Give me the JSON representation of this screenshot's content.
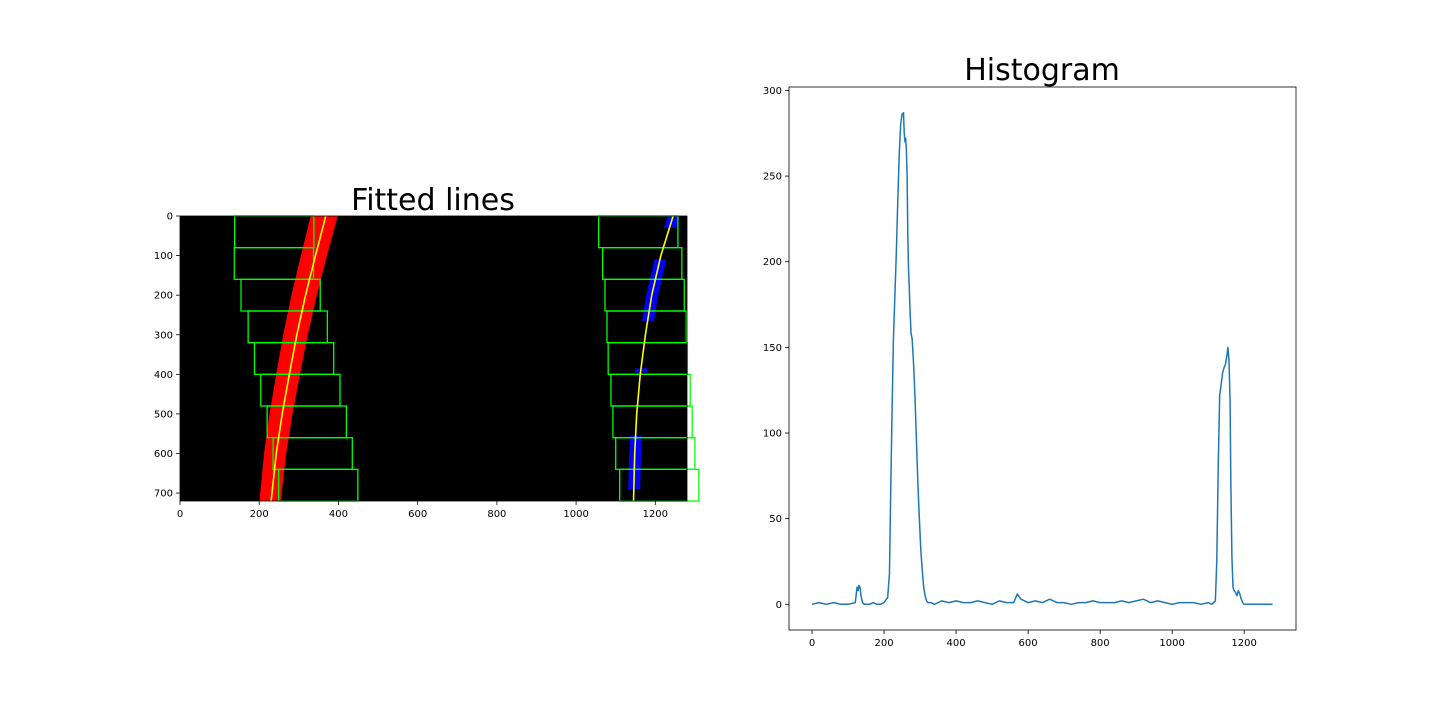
{
  "chart_data": [
    {
      "type": "image",
      "title": "Fitted lines",
      "xlim": [
        0,
        1280
      ],
      "ylim": [
        720,
        0
      ],
      "xticks": [
        0,
        200,
        400,
        600,
        800,
        1000,
        1200
      ],
      "yticks": [
        0,
        100,
        200,
        300,
        400,
        500,
        600,
        700
      ],
      "colors": {
        "background": "#000000",
        "left_lane": "#ff0000",
        "right_lane": "#0000ff",
        "windows": "#00ff00",
        "fit": "#ffff00"
      },
      "fitted_lines": [
        {
          "lane": "left",
          "y": [
            0,
            100,
            200,
            300,
            400,
            500,
            600,
            720
          ],
          "x": [
            368,
            342,
            317,
            295,
            276,
            258,
            243,
            230
          ]
        },
        {
          "lane": "right",
          "y": [
            0,
            100,
            200,
            300,
            400,
            500,
            600,
            720
          ],
          "x": [
            1245,
            1214,
            1191,
            1175,
            1162,
            1153,
            1148,
            1145
          ]
        }
      ],
      "windows": [
        {
          "lane": "left",
          "centers": [
            349,
            335,
            320,
            304,
            288,
            272,
            254,
            237,
            238
          ]
        },
        {
          "lane": "right",
          "centers": [
            1210,
            1200,
            1193,
            1188,
            1181,
            1178,
            1173,
            1167,
            1157
          ]
        }
      ]
    },
    {
      "type": "line",
      "title": "Histogram",
      "xlim": [
        -64,
        1344
      ],
      "ylim": [
        -15,
        302
      ],
      "xticks": [
        0,
        200,
        400,
        600,
        800,
        1000,
        1200
      ],
      "yticks": [
        0,
        50,
        100,
        150,
        200,
        250,
        300
      ],
      "series": [
        {
          "color": "#1f77b4",
          "x": [
            0,
            20,
            40,
            60,
            80,
            100,
            120,
            125,
            128,
            130,
            133,
            136,
            140,
            145,
            150,
            160,
            170,
            180,
            190,
            200,
            210,
            215,
            218,
            222,
            226,
            230,
            234,
            238,
            242,
            246,
            250,
            254,
            256,
            258,
            260,
            262,
            264,
            266,
            268,
            270,
            272,
            275,
            278,
            282,
            286,
            290,
            294,
            298,
            302,
            306,
            310,
            314,
            318,
            322,
            330,
            340,
            360,
            380,
            400,
            420,
            440,
            460,
            480,
            500,
            520,
            540,
            560,
            570,
            580,
            600,
            620,
            640,
            660,
            680,
            700,
            720,
            740,
            760,
            780,
            800,
            820,
            840,
            860,
            880,
            900,
            920,
            940,
            960,
            980,
            1000,
            1020,
            1040,
            1060,
            1080,
            1100,
            1110,
            1120,
            1124,
            1128,
            1132,
            1136,
            1140,
            1144,
            1148,
            1152,
            1155,
            1158,
            1161,
            1163,
            1166,
            1169,
            1172,
            1176,
            1180,
            1184,
            1188,
            1192,
            1196,
            1200,
            1210,
            1220,
            1240,
            1260,
            1279
          ],
          "values": [
            0,
            1,
            0,
            1,
            0,
            0,
            1,
            10,
            8,
            11,
            10,
            5,
            1,
            0,
            0,
            0,
            1,
            0,
            0,
            1,
            4,
            18,
            60,
            110,
            155,
            180,
            205,
            235,
            262,
            280,
            286,
            287,
            275,
            270,
            272,
            265,
            250,
            215,
            195,
            185,
            172,
            158,
            155,
            140,
            120,
            95,
            70,
            50,
            32,
            20,
            10,
            5,
            2,
            1,
            1,
            0,
            2,
            1,
            2,
            1,
            1,
            2,
            1,
            0,
            2,
            1,
            1,
            6,
            3,
            1,
            2,
            1,
            3,
            1,
            1,
            0,
            1,
            1,
            2,
            1,
            1,
            1,
            2,
            1,
            2,
            3,
            1,
            2,
            1,
            0,
            1,
            1,
            1,
            0,
            1,
            0,
            2,
            25,
            80,
            122,
            128,
            135,
            138,
            140,
            145,
            150,
            142,
            118,
            72,
            28,
            10,
            8,
            7,
            5,
            8,
            6,
            3,
            1,
            0,
            0,
            0,
            0,
            0,
            0
          ]
        }
      ]
    }
  ]
}
